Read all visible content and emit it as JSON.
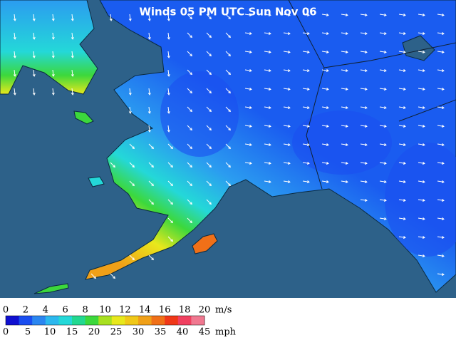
{
  "map": {
    "title": "Winds 05 PM UTC Sun Nov 06",
    "scale": {
      "colors": [
        "#1010d0",
        "#1a4ef0",
        "#2b86f0",
        "#2cb8ee",
        "#24d8d8",
        "#22d890",
        "#3cd83c",
        "#a8e020",
        "#e8e81c",
        "#f0c818",
        "#f0a018",
        "#f07018",
        "#f03818",
        "#f04060",
        "#f07890"
      ],
      "ms": {
        "labels": [
          0,
          2,
          4,
          6,
          8,
          10,
          12,
          14,
          16,
          18,
          20
        ],
        "unit": "m/s"
      },
      "mph": {
        "labels": [
          0,
          5,
          10,
          15,
          20,
          25,
          30,
          35,
          40,
          45
        ],
        "unit": "mph"
      }
    }
  }
}
